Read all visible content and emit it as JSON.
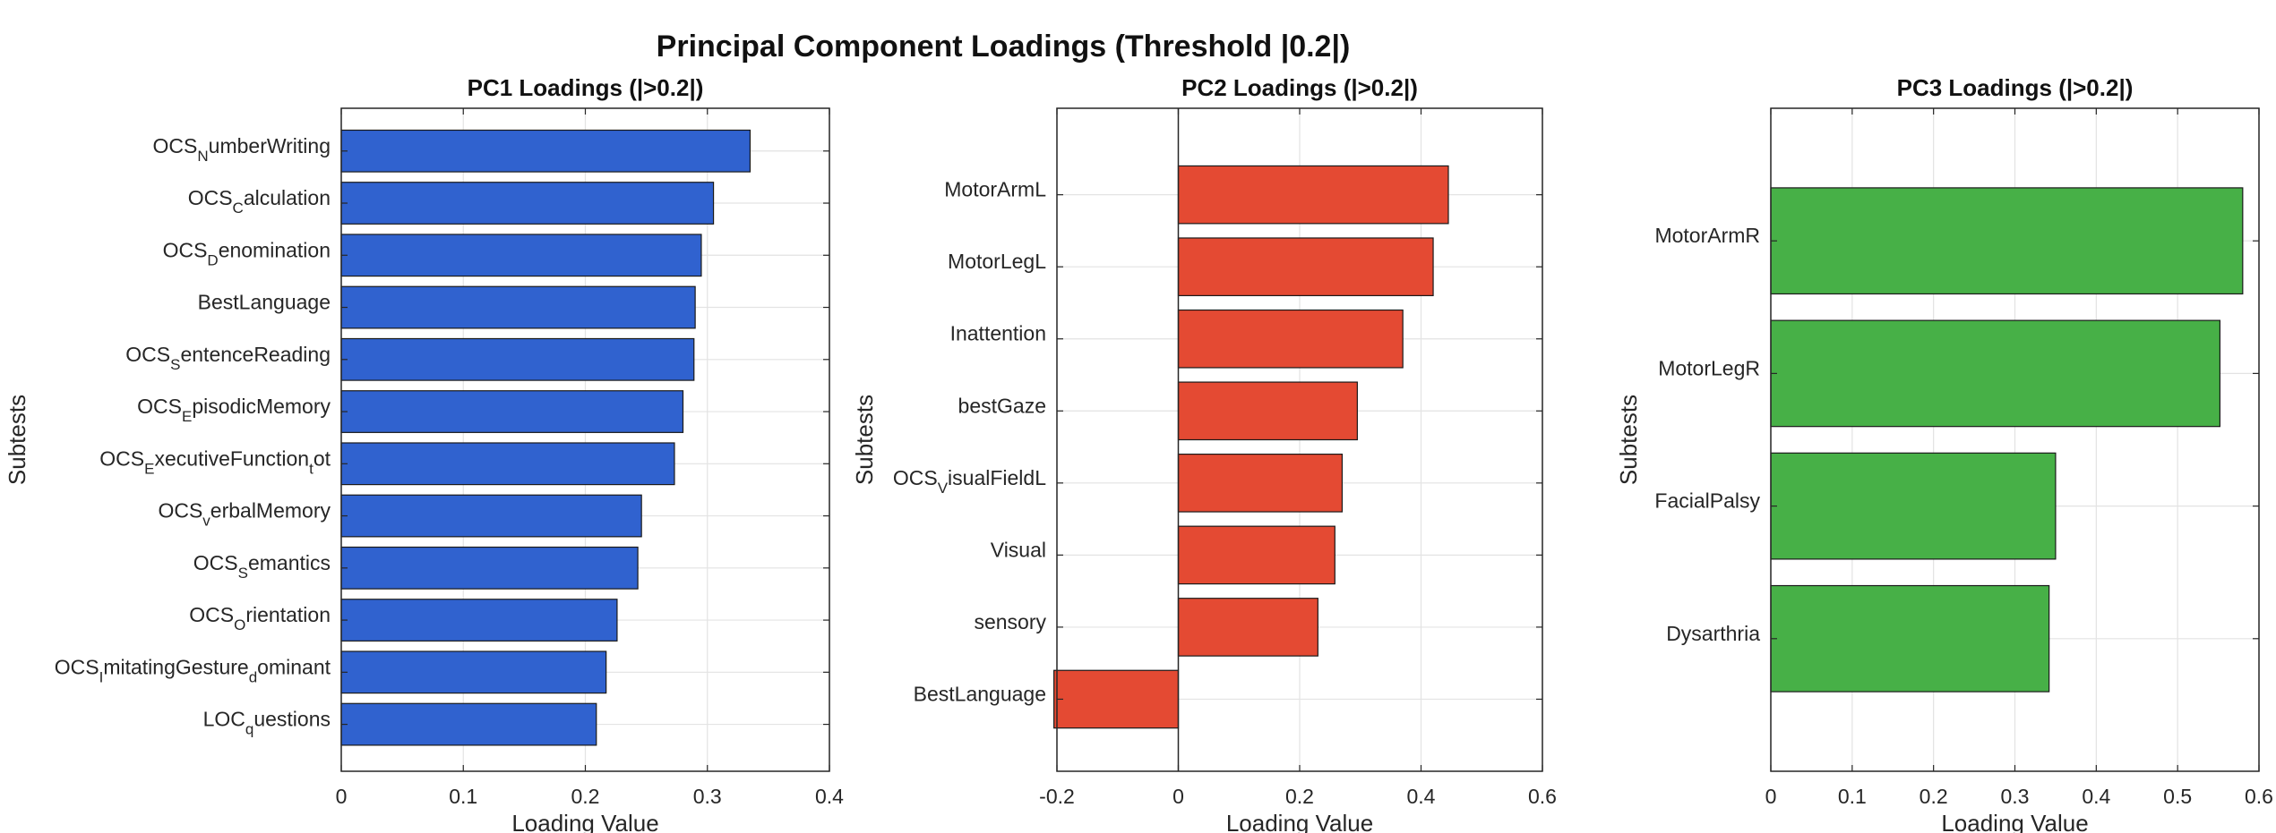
{
  "figure_title": "Principal Component Loadings (Threshold |0.2|)",
  "colors": {
    "pc1": "#3062cf",
    "pc2": "#e44a33",
    "pc3": "#47b047"
  },
  "chart_data": [
    {
      "type": "bar",
      "orientation": "horizontal",
      "title": "PC1 Loadings (|>0.2|)",
      "xlabel": "Loading Value",
      "ylabel": "Subtests",
      "xlim": [
        0,
        0.4
      ],
      "xticks": [
        "0",
        "0.1",
        "0.2",
        "0.3",
        "0.4"
      ],
      "grid": true,
      "categories": [
        "OCS_NumberWriting",
        "OCS_Calculation",
        "OCS_Denomination",
        "BestLanguage",
        "OCS_SentenceReading",
        "OCS_EpisodicMemory",
        "OCS_ExecutiveFunction_tot",
        "OCS_verbalMemory",
        "OCS_Semantics",
        "OCS_Orientation",
        "OCS_ImitatingGesture_dominant",
        "LOC_questions"
      ],
      "values": [
        0.335,
        0.305,
        0.295,
        0.29,
        0.289,
        0.28,
        0.273,
        0.246,
        0.243,
        0.226,
        0.217,
        0.209
      ]
    },
    {
      "type": "bar",
      "orientation": "horizontal",
      "title": "PC2 Loadings (|>0.2|)",
      "xlabel": "Loading Value",
      "ylabel": "Subtests",
      "xlim": [
        -0.2,
        0.6
      ],
      "xticks": [
        "-0.2",
        "0",
        "0.2",
        "0.4",
        "0.6"
      ],
      "grid": true,
      "categories": [
        "MotorArmL",
        "MotorLegL",
        "Inattention",
        "bestGaze",
        "OCS_VisualFieldL",
        "Visual",
        "sensory",
        "BestLanguage"
      ],
      "values": [
        0.445,
        0.42,
        0.37,
        0.295,
        0.27,
        0.258,
        0.23,
        -0.205
      ]
    },
    {
      "type": "bar",
      "orientation": "horizontal",
      "title": "PC3 Loadings (|>0.2|)",
      "xlabel": "Loading Value",
      "ylabel": "Subtests",
      "xlim": [
        0,
        0.6
      ],
      "xticks": [
        "0",
        "0.1",
        "0.2",
        "0.3",
        "0.4",
        "0.5",
        "0.6"
      ],
      "grid": true,
      "categories": [
        "MotorArmR",
        "MotorLegR",
        "FacialPalsy",
        "Dysarthria"
      ],
      "values": [
        0.58,
        0.552,
        0.35,
        0.342
      ]
    }
  ]
}
